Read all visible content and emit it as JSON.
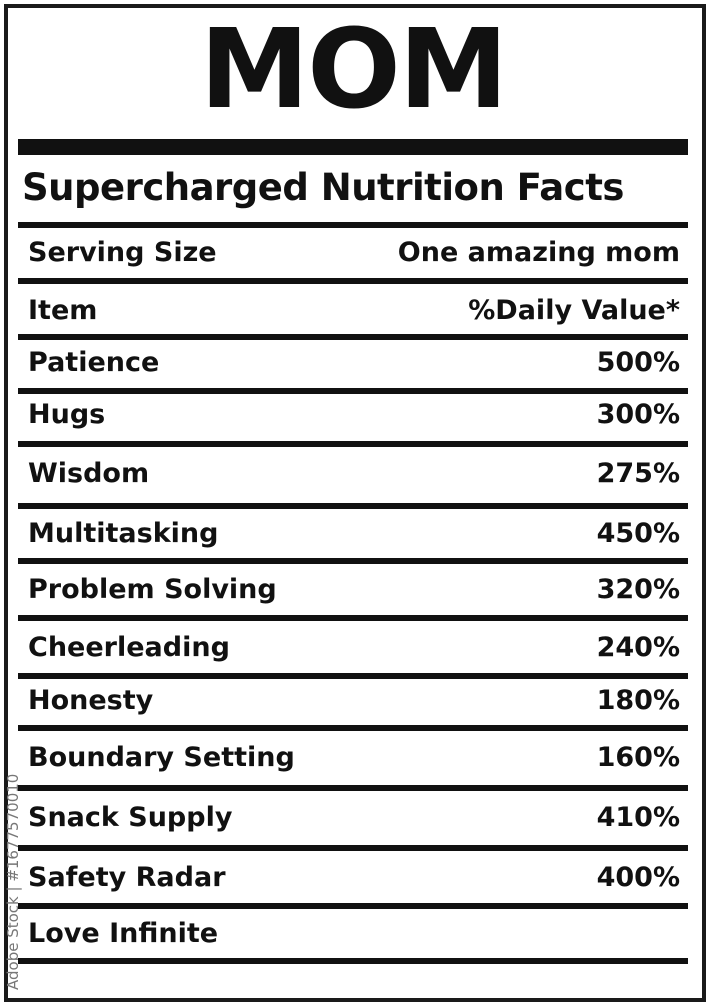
{
  "label": {
    "title": "MOM",
    "subtitle": "Supercharged Nutrition Facts",
    "serving_size_label": "Serving Size",
    "serving_size_value": "One amazing mom",
    "header_item": "Item",
    "header_value": "%Daily Value*",
    "rows": [
      {
        "item": "Patience",
        "value": "500%"
      },
      {
        "item": "Hugs",
        "value": "300%"
      },
      {
        "item": "Wisdom",
        "value": "275%"
      },
      {
        "item": "Multitasking",
        "value": "450%"
      },
      {
        "item": "Problem Solving",
        "value": "320%"
      },
      {
        "item": "Cheerleading",
        "value": "240%"
      },
      {
        "item": "Honesty",
        "value": "180%"
      },
      {
        "item": "Boundary Setting",
        "value": "160%"
      },
      {
        "item": "Snack Supply",
        "value": "410%"
      },
      {
        "item": "Safety Radar",
        "value": "400%"
      },
      {
        "item": "Love Infinite",
        "value": ""
      }
    ]
  },
  "watermark": "Adobe Stock | #1677570010",
  "colors": {
    "ink": "#111111",
    "background": "#ffffff"
  }
}
